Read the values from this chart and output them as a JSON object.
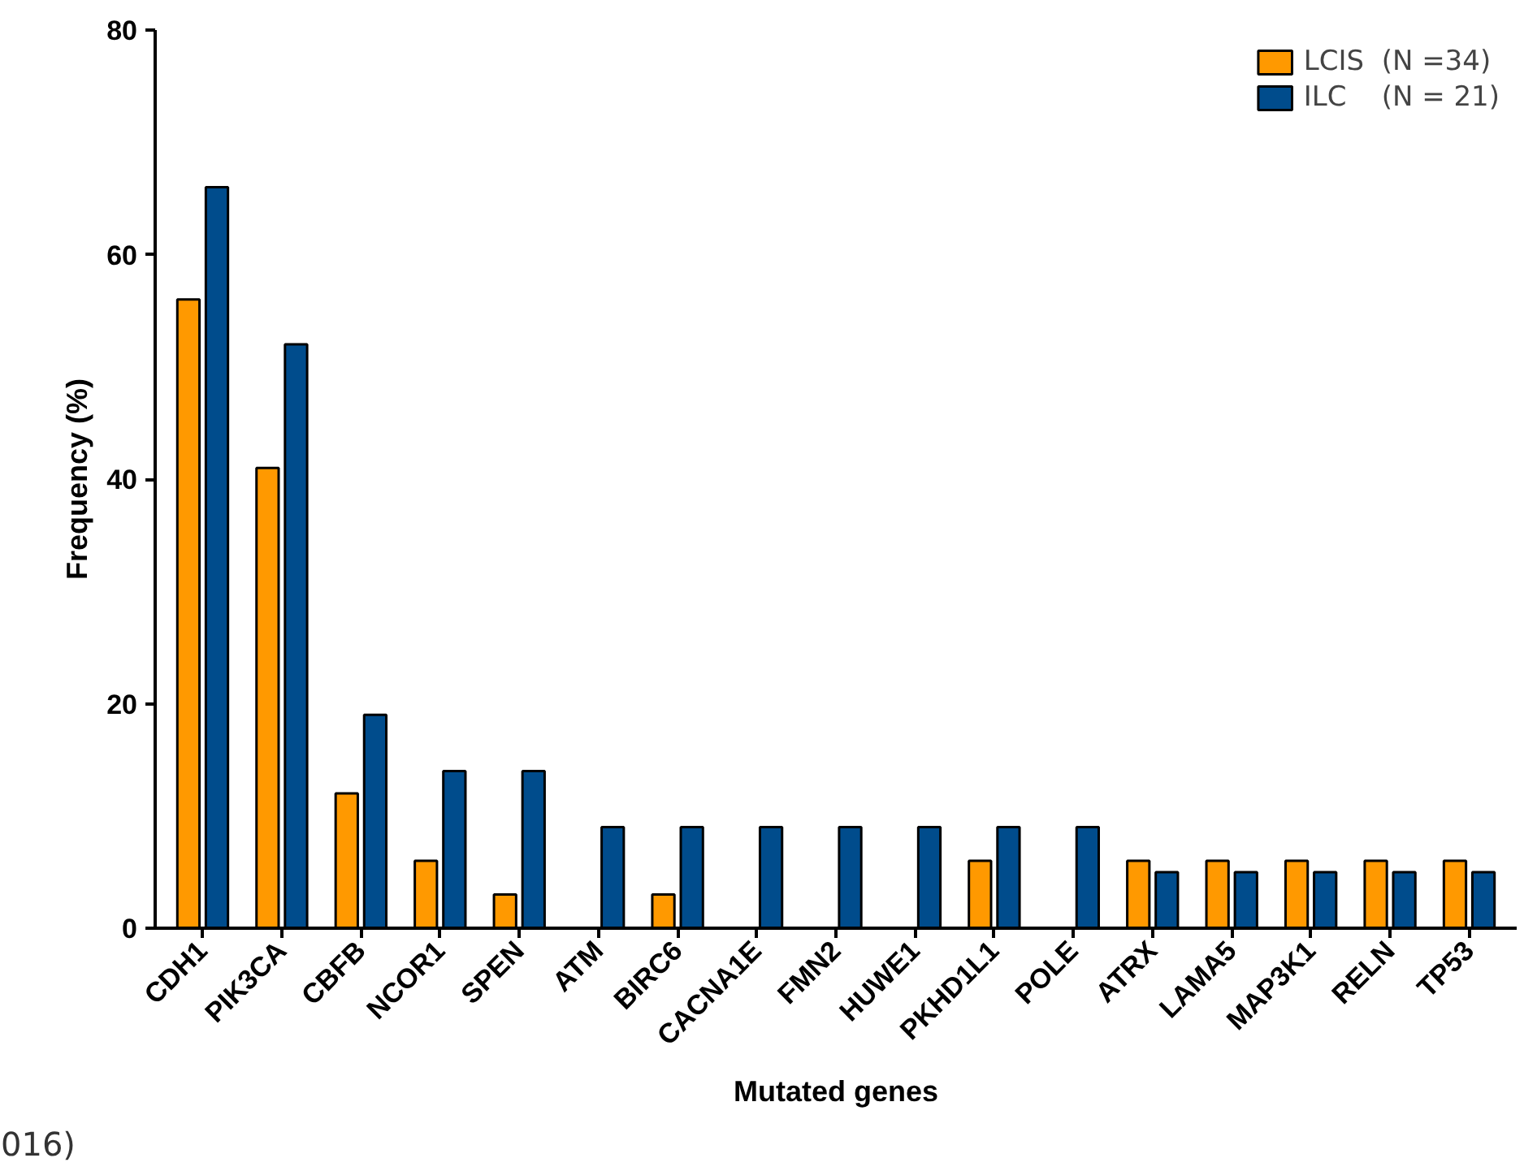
{
  "chart_data": {
    "type": "bar",
    "xlabel": "Mutated genes",
    "ylabel": "Frequency (%)",
    "categories": [
      "CDH1",
      "PIK3CA",
      "CBFB",
      "NCOR1",
      "SPEN",
      "ATM",
      "BIRC6",
      "CACNA1E",
      "FMN2",
      "HUWE1",
      "PKHD1L1",
      "POLE",
      "ATRX",
      "LAMA5",
      "MAP3K1",
      "RELN",
      "TP53"
    ],
    "series": [
      {
        "name": "LCIS  (N =34)",
        "color": "#ff9900",
        "values": [
          56,
          41,
          12,
          6,
          3,
          0,
          3,
          0,
          0,
          0,
          6,
          0,
          6,
          6,
          6,
          6,
          6
        ]
      },
      {
        "name": "ILC    (N = 21)",
        "color": "#004c8c",
        "values": [
          66,
          52,
          19,
          14,
          14,
          9,
          9,
          9,
          9,
          9,
          9,
          9,
          5,
          5,
          5,
          5,
          5
        ]
      }
    ],
    "ylim": [
      0,
      80
    ],
    "yticks": [
      0,
      20,
      40,
      60,
      80
    ],
    "grid": false,
    "legend": "top right",
    "annotations": [
      "016)"
    ]
  }
}
